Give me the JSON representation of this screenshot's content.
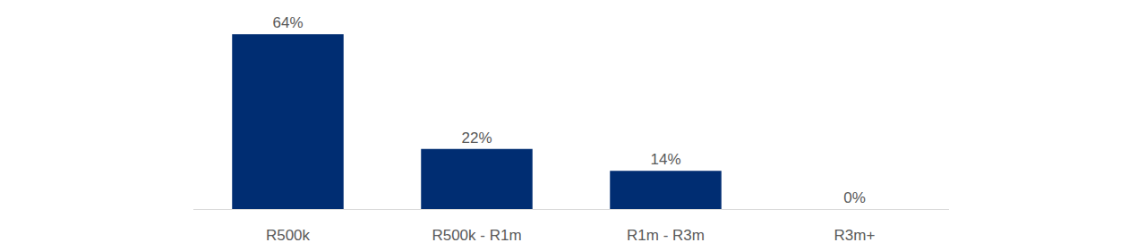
{
  "chart_data": {
    "type": "bar",
    "categories": [
      "R500k",
      "R500k - R1m",
      "R1m - R3m",
      "R3m+"
    ],
    "values": [
      64,
      22,
      14,
      0
    ],
    "value_labels": [
      "64%",
      "22%",
      "14%",
      "0%"
    ],
    "data_labels": true,
    "color": "#002d72",
    "grid": false,
    "tick_labels": "x"
  }
}
